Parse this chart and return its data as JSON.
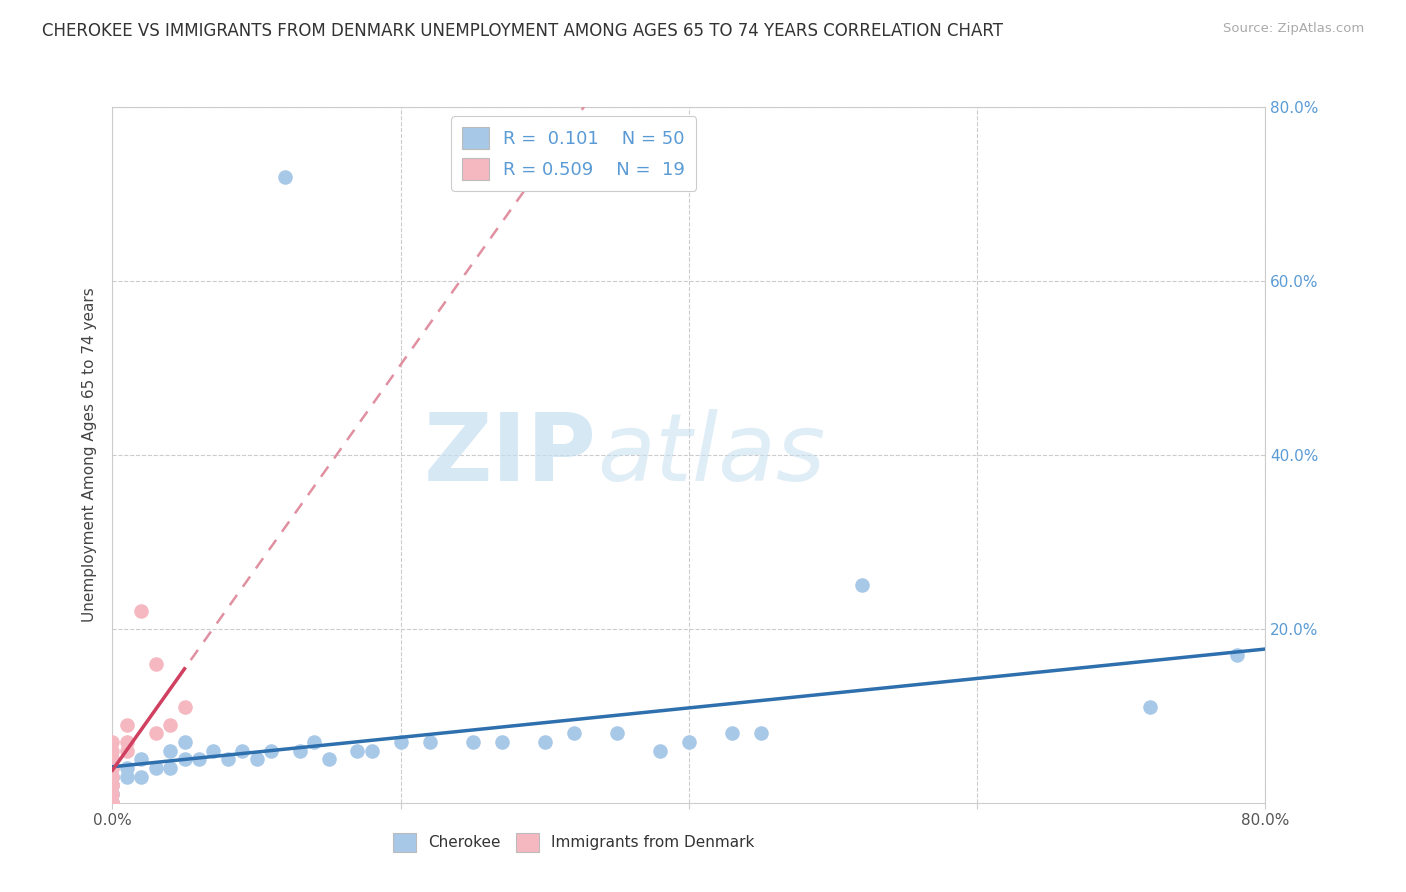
{
  "title": "CHEROKEE VS IMMIGRANTS FROM DENMARK UNEMPLOYMENT AMONG AGES 65 TO 74 YEARS CORRELATION CHART",
  "source": "Source: ZipAtlas.com",
  "ylabel": "Unemployment Among Ages 65 to 74 years",
  "xlim": [
    0.0,
    0.8
  ],
  "ylim": [
    0.0,
    0.8
  ],
  "xtick_vals": [
    0.0,
    0.2,
    0.4,
    0.6,
    0.8
  ],
  "xtick_labels": [
    "0.0%",
    "",
    "",
    "",
    "80.0%"
  ],
  "ytick_vals": [
    0.2,
    0.4,
    0.6,
    0.8
  ],
  "ytick_labels_right": [
    "20.0%",
    "40.0%",
    "60.0%",
    "80.0%"
  ],
  "cherokee_color": "#a8c8e8",
  "denmark_color": "#f5b8c0",
  "cherokee_line_color": "#2e6fad",
  "denmark_line_color": "#d04060",
  "denmark_line_dashed_color": "#e090a0",
  "background_color": "#ffffff",
  "grid_color": "#cccccc",
  "watermark_text": "ZIPatlas",
  "cherokee_R": 0.101,
  "cherokee_N": 50,
  "denmark_R": 0.509,
  "denmark_N": 19,
  "cherokee_x": [
    0.0,
    0.0,
    0.0,
    0.0,
    0.0,
    0.0,
    0.0,
    0.0,
    0.0,
    0.0,
    0.0,
    0.0,
    0.0,
    0.0,
    0.0,
    0.01,
    0.01,
    0.02,
    0.02,
    0.03,
    0.04,
    0.04,
    0.05,
    0.05,
    0.06,
    0.07,
    0.08,
    0.09,
    0.1,
    0.11,
    0.12,
    0.13,
    0.14,
    0.15,
    0.17,
    0.18,
    0.2,
    0.22,
    0.25,
    0.27,
    0.3,
    0.32,
    0.35,
    0.38,
    0.4,
    0.43,
    0.45,
    0.52,
    0.72,
    0.78
  ],
  "cherokee_y": [
    0.0,
    0.0,
    0.0,
    0.0,
    0.0,
    0.0,
    0.0,
    0.01,
    0.01,
    0.02,
    0.02,
    0.03,
    0.03,
    0.04,
    0.05,
    0.03,
    0.04,
    0.03,
    0.05,
    0.04,
    0.04,
    0.06,
    0.05,
    0.07,
    0.05,
    0.06,
    0.05,
    0.06,
    0.05,
    0.06,
    0.72,
    0.06,
    0.07,
    0.05,
    0.06,
    0.06,
    0.07,
    0.07,
    0.07,
    0.07,
    0.07,
    0.08,
    0.08,
    0.06,
    0.07,
    0.08,
    0.08,
    0.25,
    0.11,
    0.17
  ],
  "denmark_x": [
    0.0,
    0.0,
    0.0,
    0.0,
    0.0,
    0.0,
    0.0,
    0.0,
    0.0,
    0.0,
    0.0,
    0.01,
    0.01,
    0.01,
    0.02,
    0.03,
    0.03,
    0.04,
    0.05
  ],
  "denmark_y": [
    0.0,
    0.0,
    0.0,
    0.01,
    0.02,
    0.02,
    0.03,
    0.04,
    0.05,
    0.06,
    0.07,
    0.06,
    0.07,
    0.09,
    0.22,
    0.08,
    0.16,
    0.09,
    0.11
  ],
  "title_fontsize": 12,
  "legend_fontsize": 13,
  "axis_label_fontsize": 11,
  "tick_fontsize": 11
}
